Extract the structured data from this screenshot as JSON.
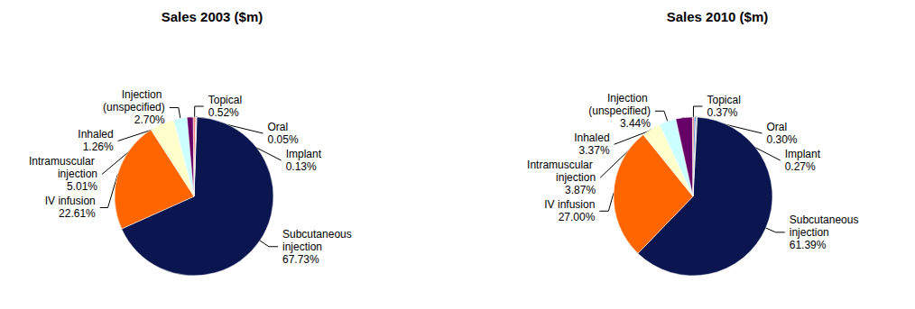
{
  "chart_data": [
    {
      "type": "pie",
      "title": "Sales 2003 ($m)",
      "categories": [
        "Subcutaneous injection",
        "IV infusion",
        "Intramuscular injection",
        "Injection (unspecified)",
        "Inhaled",
        "Topical",
        "Oral",
        "Implant"
      ],
      "values": [
        67.73,
        22.61,
        5.01,
        2.7,
        1.26,
        0.52,
        0.05,
        0.13
      ],
      "value_labels": [
        "67.73%",
        "22.61%",
        "5.01%",
        "2.70%",
        "1.26%",
        "0.52%",
        "0.05%",
        "0.13%"
      ],
      "colors": [
        "#0b1650",
        "#ff6600",
        "#ffffcc",
        "#ccffff",
        "#660066",
        "#ff8080",
        "#0066cc",
        "#c0c0c0"
      ],
      "data_labels": true
    },
    {
      "type": "pie",
      "title": "Sales 2010 ($m)",
      "categories": [
        "Subcutaneous injection",
        "IV infusion",
        "Intramuscular injection",
        "Injection (unspecified)",
        "Inhaled",
        "Topical",
        "Oral",
        "Implant"
      ],
      "values": [
        61.39,
        27.0,
        3.87,
        3.44,
        3.37,
        0.37,
        0.3,
        0.27
      ],
      "value_labels": [
        "61.39%",
        "27.00%",
        "3.87%",
        "3.44%",
        "3.37%",
        "0.37%",
        "0.30%",
        "0.27%"
      ],
      "colors": [
        "#0b1650",
        "#ff6600",
        "#ffffcc",
        "#ccffff",
        "#660066",
        "#ff8080",
        "#0066cc",
        "#c0c0c0"
      ],
      "data_labels": true
    }
  ]
}
